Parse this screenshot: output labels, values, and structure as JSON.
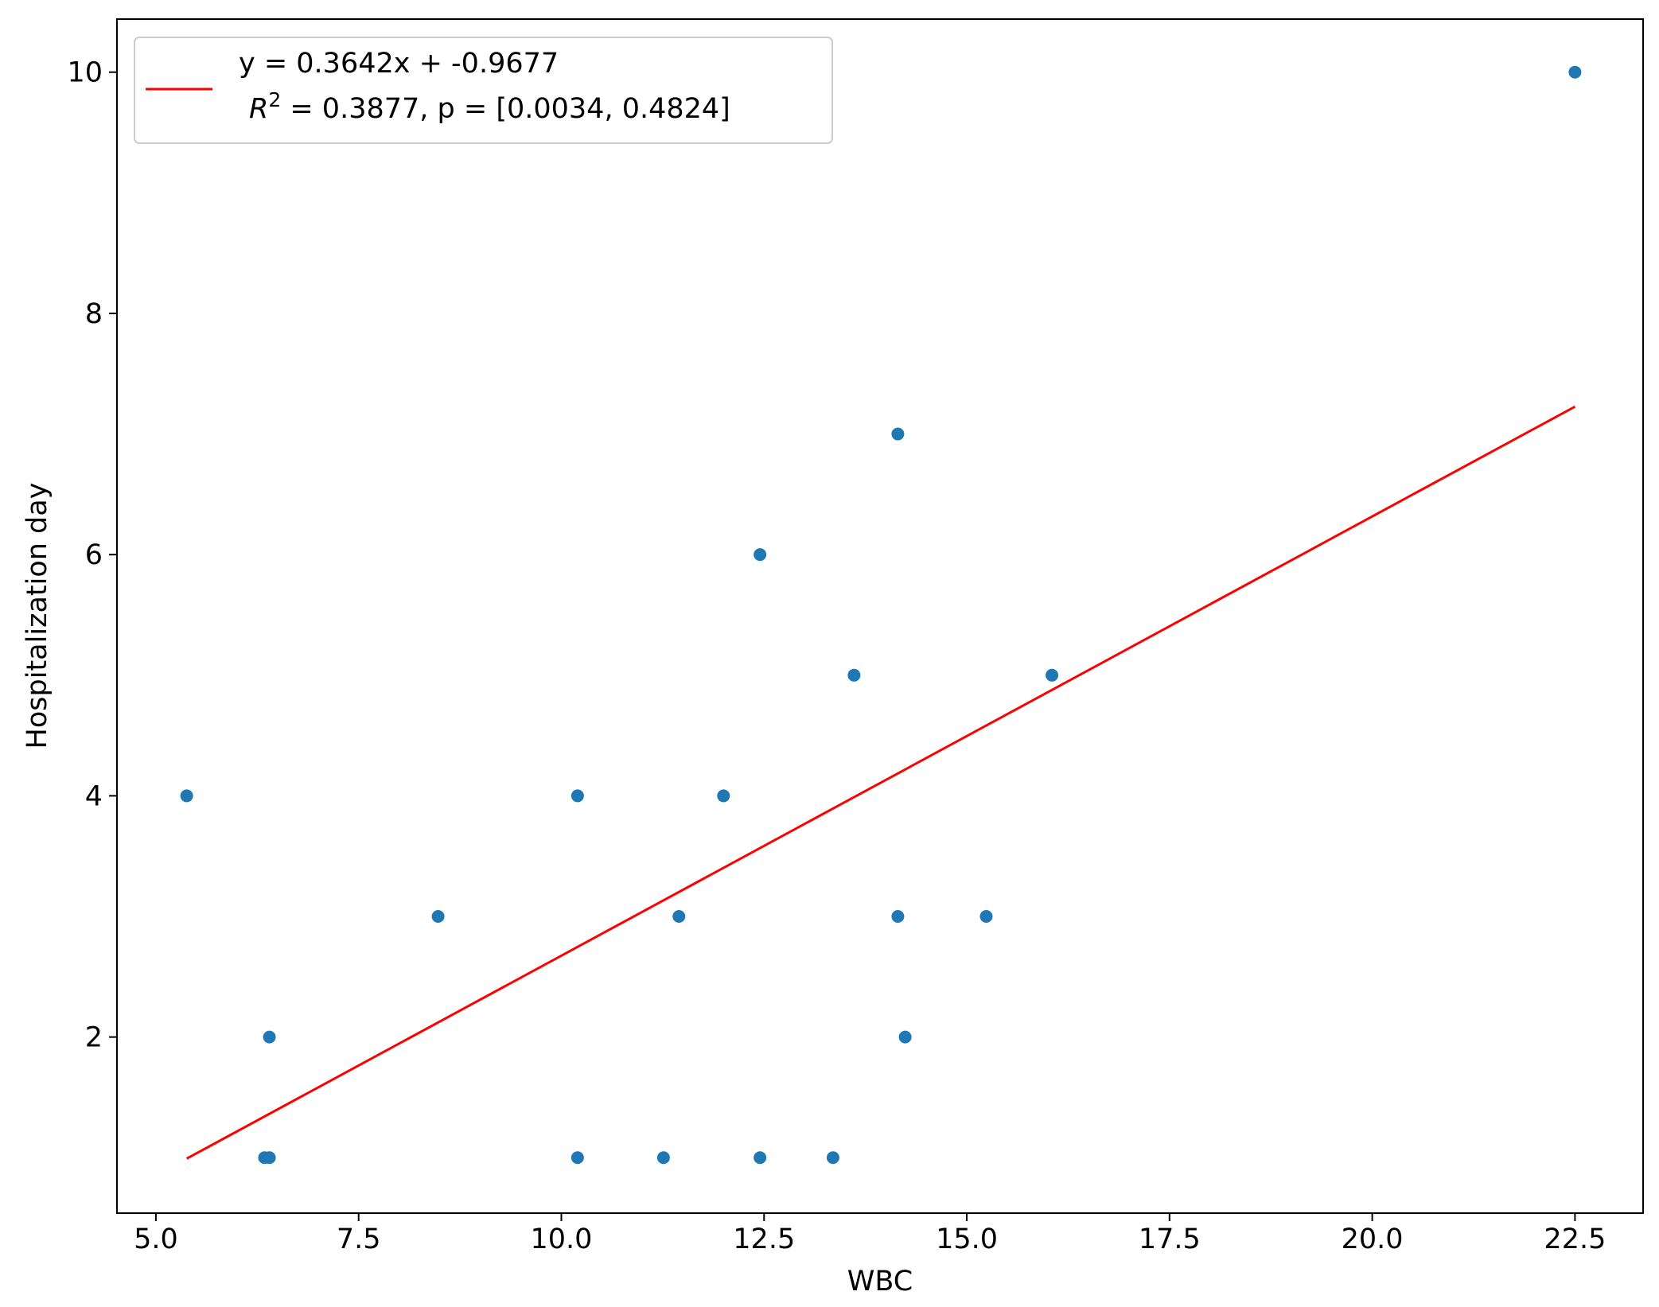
{
  "chart_data": {
    "type": "scatter",
    "xlabel": "WBC",
    "ylabel": "Hospitalization day",
    "points": {
      "color": "#1f77b4",
      "x": [
        5.38,
        10.2,
        12.0,
        8.48,
        11.45,
        14.15,
        15.24,
        6.4,
        14.24,
        6.34,
        6.4,
        10.2,
        11.26,
        12.45,
        13.35,
        12.45,
        13.61,
        16.05,
        14.15,
        22.5
      ],
      "values": [
        4,
        4,
        4,
        3,
        3,
        3,
        3,
        2,
        2,
        1,
        1,
        1,
        1,
        1,
        1,
        6,
        5,
        5,
        7,
        10
      ]
    },
    "series": [
      {
        "name": "y = 0.3642x + -0.9677",
        "name_line2": [
          "R",
          "2",
          " = 0.3877, p = [0.0034, 0.4824]"
        ],
        "color": "#ff0000",
        "x": [
          5.38,
          22.5
        ],
        "values": [
          0.992,
          7.227
        ]
      }
    ],
    "xlim": [
      4.52,
      23.34
    ],
    "ylim": [
      0.54,
      10.44
    ],
    "xticks": [
      {
        "value": 5,
        "label": "5.0"
      },
      7.5,
      {
        "value": 10,
        "label": "10.0"
      },
      12.5,
      {
        "value": 15,
        "label": "15.0"
      },
      17.5,
      {
        "value": 20,
        "label": "20.0"
      },
      22.5
    ],
    "yticks": [
      2,
      4,
      6,
      8,
      10
    ],
    "legend": "upper left"
  }
}
